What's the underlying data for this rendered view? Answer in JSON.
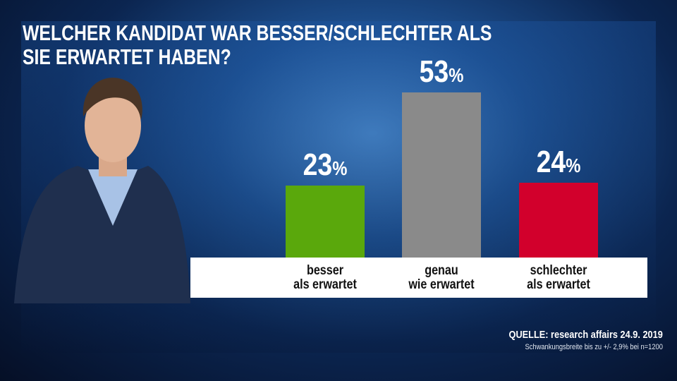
{
  "chart_data": {
    "type": "bar",
    "title": "WELCHER KANDIDAT WAR BESSER/SCHLECHTER ALS\nSIE ERWARTET HABEN?",
    "categories": [
      "besser\nals erwartet",
      "genau\nwie erwartet",
      "schlechter\nals erwartet"
    ],
    "values": [
      23,
      53,
      24
    ],
    "value_labels": [
      "23%",
      "53%",
      "24%"
    ],
    "colors": [
      "#5aa80c",
      "#8a8a8a",
      "#d2002c"
    ],
    "source": "QUELLE: research affairs 24.9. 2019",
    "note": "Schwankungsbreite bis zu +/- 2,9% bei n=1200"
  }
}
